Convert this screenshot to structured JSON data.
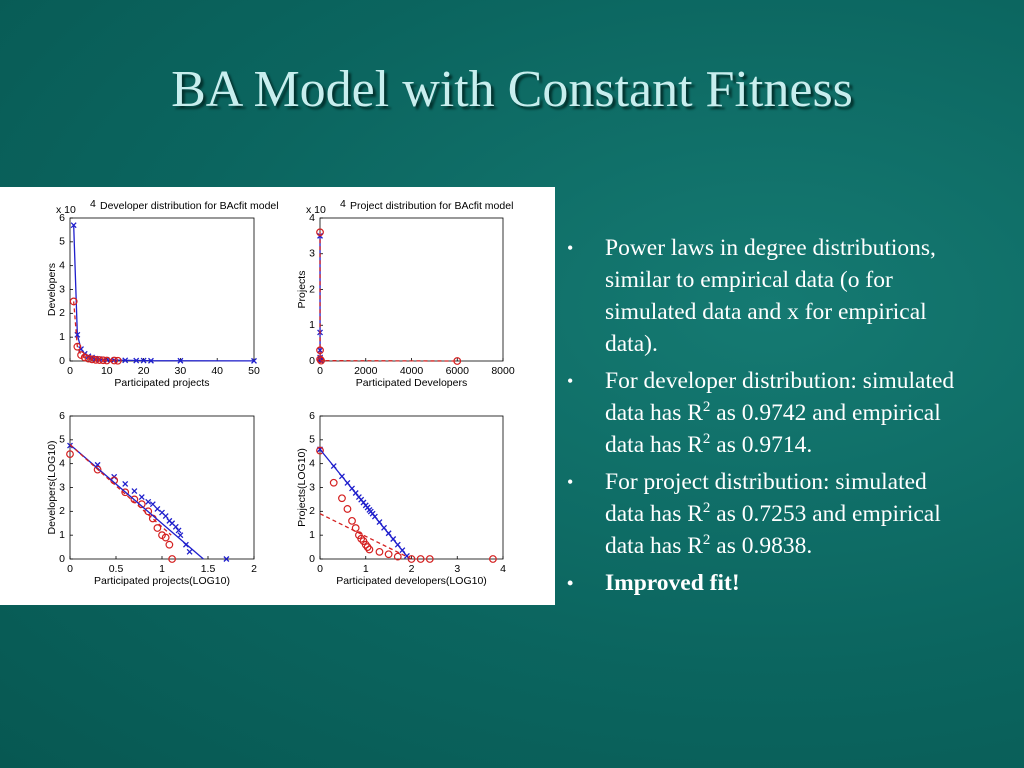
{
  "slide": {
    "title": "BA Model with Constant Fitness",
    "bullets": [
      {
        "parts": [
          "Power laws in degree distributions, similar to empirical data (o for simulated data and x for empirical data)."
        ]
      },
      {
        "parts": [
          "For developer distribution: simulated data has R",
          "2",
          " as 0.9742 and empirical data has R",
          "2",
          " as 0.9714."
        ]
      },
      {
        "parts": [
          "For project distribution: simulated data has R",
          "2",
          " as 0.7253 and empirical data has R",
          "2",
          " as 0.9838."
        ]
      },
      {
        "parts": [
          "Improved fit!"
        ],
        "bold": true
      }
    ]
  },
  "chart_data": [
    {
      "type": "line",
      "title": "Developer distribution for BAcfit model",
      "xlabel": "Participated projects",
      "ylabel": "Developers",
      "y_multiplier": {
        "base": "x 10",
        "exponent": "4"
      },
      "xlim": [
        0,
        50
      ],
      "xticks": [
        0,
        10,
        20,
        30,
        40,
        50
      ],
      "ylim": [
        0,
        6
      ],
      "yticks": [
        0,
        1,
        2,
        3,
        4,
        5,
        6
      ],
      "series": [
        {
          "color": "#1f1fcc",
          "marker": "x",
          "line": "solid",
          "x": [
            1,
            2,
            3,
            4,
            5,
            6,
            7,
            8,
            10,
            12,
            15,
            18,
            20,
            22,
            30,
            50
          ],
          "values": [
            5.7,
            1.1,
            0.5,
            0.3,
            0.2,
            0.15,
            0.1,
            0.08,
            0.05,
            0.04,
            0.03,
            0.02,
            0.02,
            0.01,
            0.01,
            0.005
          ]
        },
        {
          "color": "#d42020",
          "marker": "o",
          "line": "dashed",
          "x": [
            1,
            2,
            3,
            4,
            5,
            6,
            7,
            8,
            9,
            10,
            12,
            13
          ],
          "values": [
            2.5,
            0.6,
            0.25,
            0.15,
            0.1,
            0.07,
            0.05,
            0.04,
            0.03,
            0.02,
            0.02,
            0.01
          ]
        }
      ]
    },
    {
      "type": "line",
      "title": "Project distribution for BAcfit model",
      "xlabel": "Participated Developers",
      "ylabel": "Projects",
      "y_multiplier": {
        "base": "x 10",
        "exponent": "4"
      },
      "xlim": [
        0,
        8000
      ],
      "xticks": [
        0,
        2000,
        4000,
        6000,
        8000
      ],
      "ylim": [
        0,
        4
      ],
      "yticks": [
        0,
        1,
        2,
        3,
        4
      ],
      "series": [
        {
          "color": "#1f1fcc",
          "marker": "x",
          "line": "solid",
          "x": [
            1,
            2,
            3,
            5,
            10,
            20,
            50
          ],
          "values": [
            3.5,
            0.8,
            0.3,
            0.1,
            0.05,
            0.02,
            0.01
          ]
        },
        {
          "color": "#d42020",
          "marker": "o",
          "line": "dashed",
          "x": [
            1,
            2,
            5,
            50,
            6000
          ],
          "values": [
            3.6,
            0.3,
            0.05,
            0.01,
            0
          ]
        }
      ]
    },
    {
      "type": "scatter",
      "xlabel": "Participated projects(LOG10)",
      "ylabel": "Developers(LOG10)",
      "xlim": [
        0,
        2
      ],
      "xticks": [
        0,
        0.5,
        1,
        1.5,
        2
      ],
      "ylim": [
        0,
        6
      ],
      "yticks": [
        0,
        1,
        2,
        3,
        4,
        5,
        6
      ],
      "series": [
        {
          "color": "#1f1fcc",
          "marker": "x",
          "line": "none",
          "x": [
            0,
            0.3,
            0.48,
            0.6,
            0.7,
            0.78,
            0.85,
            0.9,
            0.95,
            1.0,
            1.04,
            1.08,
            1.11,
            1.15,
            1.18,
            1.2,
            1.26,
            1.3,
            1.7
          ],
          "values": [
            4.76,
            3.95,
            3.45,
            3.15,
            2.85,
            2.6,
            2.4,
            2.3,
            2.1,
            1.95,
            1.8,
            1.6,
            1.5,
            1.35,
            1.2,
            1.0,
            0.6,
            0.3,
            0
          ]
        },
        {
          "color": "#d42020",
          "marker": "o",
          "line": "none",
          "x": [
            0,
            0.3,
            0.48,
            0.6,
            0.7,
            0.78,
            0.85,
            0.9,
            0.95,
            1.0,
            1.04,
            1.08,
            1.11
          ],
          "values": [
            4.4,
            3.75,
            3.3,
            2.8,
            2.5,
            2.3,
            2.0,
            1.7,
            1.3,
            1.0,
            0.9,
            0.6,
            0
          ]
        },
        {
          "color": "#1f1fcc",
          "marker": "none",
          "line": "solid",
          "x": [
            0,
            1.45
          ],
          "values": [
            4.8,
            0
          ]
        },
        {
          "color": "#d42020",
          "marker": "none",
          "line": "dashed",
          "x": [
            0,
            1.1
          ],
          "values": [
            4.8,
            1.0
          ]
        }
      ]
    },
    {
      "type": "scatter",
      "xlabel": "Participated developers(LOG10)",
      "ylabel": "Projects(LOG10)",
      "xlim": [
        0,
        4
      ],
      "xticks": [
        0,
        1,
        2,
        3,
        4
      ],
      "ylim": [
        0,
        6
      ],
      "yticks": [
        0,
        1,
        2,
        3,
        4,
        5,
        6
      ],
      "series": [
        {
          "color": "#1f1fcc",
          "marker": "x",
          "line": "none",
          "x": [
            0,
            0.3,
            0.48,
            0.6,
            0.7,
            0.78,
            0.85,
            0.9,
            0.95,
            1.0,
            1.04,
            1.08,
            1.11,
            1.15,
            1.2,
            1.3,
            1.4,
            1.5,
            1.6,
            1.7,
            1.8,
            1.9
          ],
          "values": [
            4.6,
            3.9,
            3.47,
            3.19,
            2.96,
            2.77,
            2.6,
            2.49,
            2.37,
            2.25,
            2.16,
            2.06,
            1.99,
            1.9,
            1.78,
            1.55,
            1.31,
            1.08,
            0.84,
            0.6,
            0.37,
            0.13
          ]
        },
        {
          "color": "#d42020",
          "marker": "o",
          "line": "none",
          "x": [
            0,
            0.3,
            0.48,
            0.6,
            0.7,
            0.78,
            0.85,
            0.9,
            0.95,
            1.0,
            1.04,
            1.08,
            1.3,
            1.5,
            1.7,
            2.0,
            2.2,
            2.4,
            3.78
          ],
          "values": [
            4.55,
            3.2,
            2.55,
            2.1,
            1.6,
            1.3,
            1.0,
            0.85,
            0.75,
            0.6,
            0.5,
            0.4,
            0.3,
            0.2,
            0.1,
            0,
            0,
            0,
            0
          ]
        },
        {
          "color": "#1f1fcc",
          "marker": "none",
          "line": "solid",
          "x": [
            0,
            1.95
          ],
          "values": [
            4.6,
            0
          ]
        },
        {
          "color": "#d42020",
          "marker": "none",
          "line": "dashed",
          "x": [
            0,
            2.0
          ],
          "values": [
            1.9,
            0
          ]
        }
      ]
    }
  ]
}
